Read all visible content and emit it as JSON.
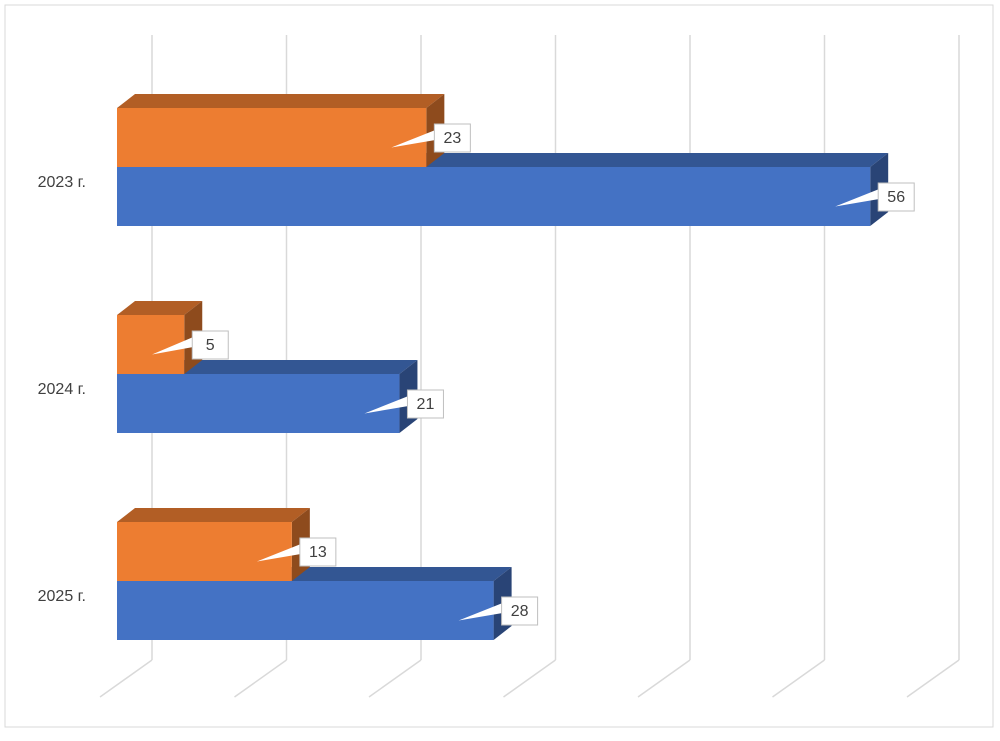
{
  "chart_data": {
    "type": "bar3d-horizontal",
    "categories": [
      "2023 г.",
      "2024 г.",
      "2025 г."
    ],
    "series": [
      {
        "color": "#4472c4",
        "values": [
          56,
          21,
          28
        ]
      },
      {
        "color": "#ed7d31",
        "values": [
          23,
          5,
          13
        ]
      }
    ],
    "xlim": [
      0,
      60
    ],
    "xticks": [
      0,
      10,
      20,
      30,
      40,
      50,
      60
    ],
    "grid": true
  }
}
